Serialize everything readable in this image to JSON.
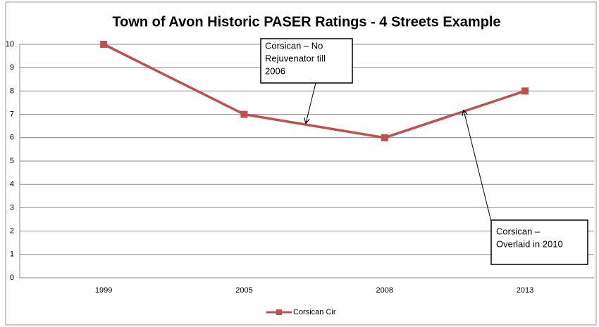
{
  "chart_data": {
    "type": "line",
    "title": "Town of Avon Historic PASER Ratings - 4 Streets Example",
    "categories": [
      "1999",
      "2005",
      "2008",
      "2013"
    ],
    "series": [
      {
        "name": "Corsican Cir",
        "color": "#c0504d",
        "values": [
          10,
          7,
          6,
          8
        ]
      }
    ],
    "ylim": [
      0,
      10
    ],
    "yticks": [
      0,
      1,
      2,
      3,
      4,
      5,
      6,
      7,
      8,
      9,
      10
    ],
    "grid": true,
    "legend": "bottom",
    "annotations": [
      {
        "text": [
          "Corsican – No",
          "Rejuvenator till",
          "2006"
        ]
      },
      {
        "text": [
          "Corsican –",
          "Overlaid in 2010"
        ]
      }
    ]
  }
}
